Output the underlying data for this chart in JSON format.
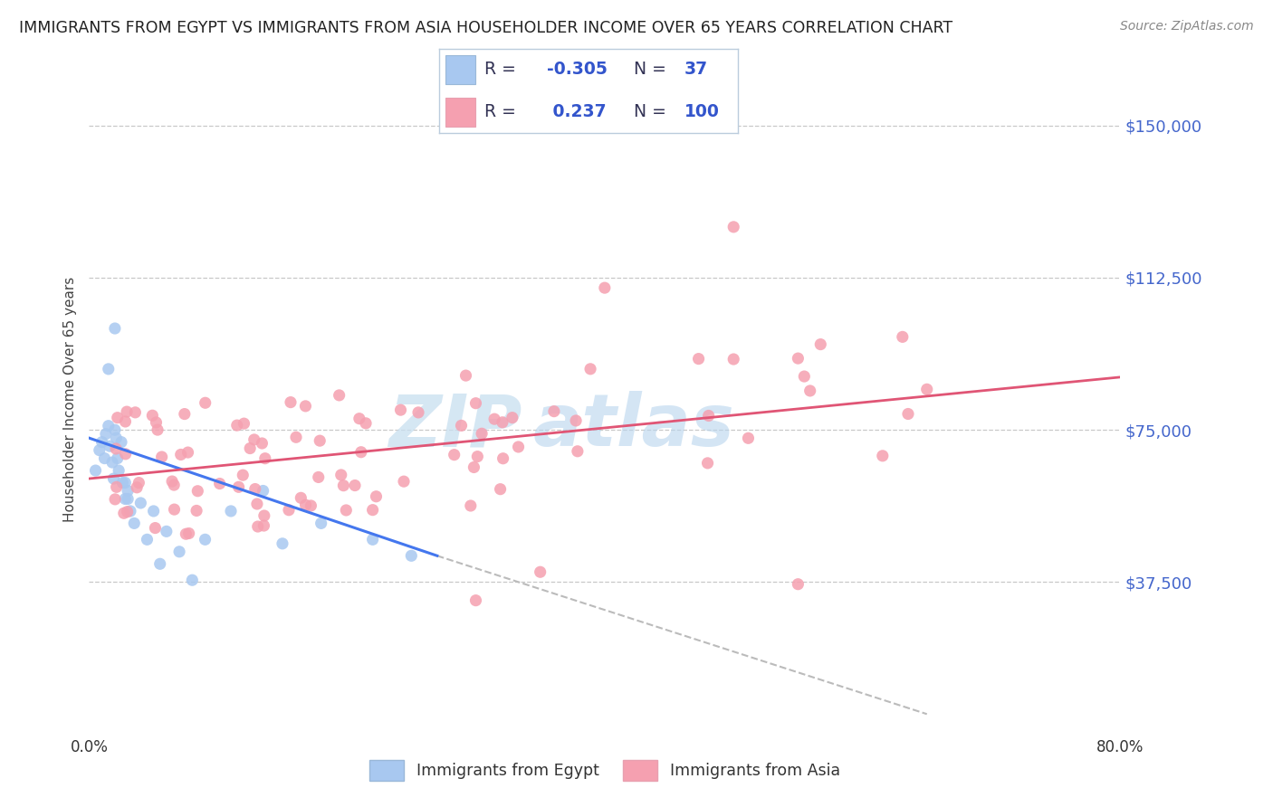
{
  "title": "IMMIGRANTS FROM EGYPT VS IMMIGRANTS FROM ASIA HOUSEHOLDER INCOME OVER 65 YEARS CORRELATION CHART",
  "source": "Source: ZipAtlas.com",
  "ylabel": "Householder Income Over 65 years",
  "xlim": [
    0.0,
    80.0
  ],
  "ylim": [
    0,
    165000
  ],
  "yticks": [
    37500,
    75000,
    112500,
    150000
  ],
  "ytick_labels": [
    "$37,500",
    "$75,000",
    "$112,500",
    "$150,000"
  ],
  "grid_color": "#c8c8c8",
  "background_color": "#ffffff",
  "egypt_color": "#a8c8f0",
  "asia_color": "#f5a0b0",
  "egypt_line_color": "#4477ee",
  "asia_line_color": "#e05575",
  "dashed_line_color": "#bbbbbb",
  "legend_text_color": "#3355cc",
  "legend_dark_color": "#333355",
  "egypt_R": -0.305,
  "egypt_N": 37,
  "asia_R": 0.237,
  "asia_N": 100,
  "watermark_zip_color": "#c8dff0",
  "watermark_atlas_color": "#d0e8f8",
  "egypt_trend_x0": 0.0,
  "egypt_trend_y0": 73000,
  "egypt_trend_x1": 27.0,
  "egypt_trend_y1": 44000,
  "egypt_dash_x0": 27.0,
  "egypt_dash_y0": 44000,
  "egypt_dash_x1": 65.0,
  "egypt_dash_y1": 5000,
  "asia_trend_x0": 0.0,
  "asia_trend_y0": 63000,
  "asia_trend_x1": 80.0,
  "asia_trend_y1": 88000
}
